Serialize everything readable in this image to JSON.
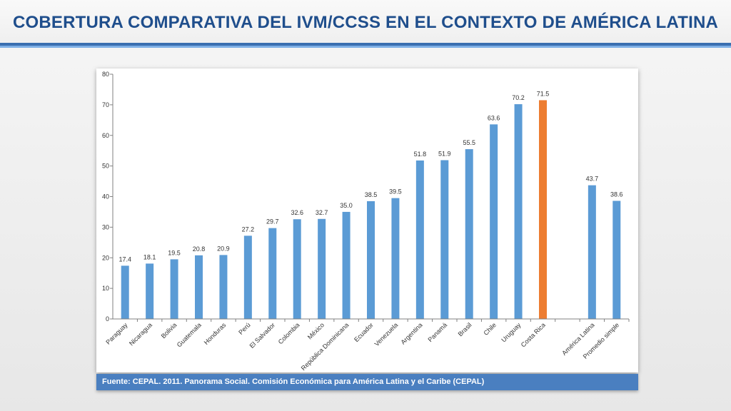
{
  "slide": {
    "title": "COBERTURA COMPARATIVA DEL IVM/CCSS EN EL CONTEXTO DE AMÉRICA LATINA",
    "source": "Fuente: CEPAL. 2011. Panorama Social. Comisión Económica para América Latina y el Caribe (CEPAL)"
  },
  "colors": {
    "title": "#1f4e8c",
    "bar_default": "#5b9bd5",
    "bar_highlight": "#ed7d31",
    "footer_band": "#4a7fc0"
  },
  "chart_data": {
    "type": "bar",
    "title": "",
    "xlabel": "",
    "ylabel": "",
    "ylim": [
      0,
      80
    ],
    "yticks": [
      0,
      10,
      20,
      30,
      40,
      50,
      60,
      70,
      80
    ],
    "grid": false,
    "legend": "none",
    "categories": [
      "Paraguay",
      "Nicaragua",
      "Bolivia",
      "Guatemala",
      "Honduras",
      "Perú",
      "El Salvador",
      "Colombia",
      "México",
      "República Dominicana",
      "Ecuador",
      "Venezuela",
      "Argentina",
      "Panamá",
      "Brasil",
      "Chile",
      "Uruguay",
      "Costa Rica",
      "",
      "América Latina",
      "Promedio simple"
    ],
    "values": [
      17.4,
      18.1,
      19.5,
      20.8,
      20.9,
      27.2,
      29.7,
      32.6,
      32.7,
      35.0,
      38.5,
      39.5,
      51.8,
      51.9,
      55.5,
      63.6,
      70.2,
      71.5,
      null,
      43.7,
      38.6
    ],
    "value_labels": [
      "17.4",
      "18.1",
      "19.5",
      "20.8",
      "20.9",
      "27.2",
      "29.7",
      "32.6",
      "32.7",
      "35.0",
      "38.5",
      "39.5",
      "51.8",
      "51.9",
      "55.5",
      "63.6",
      "70.2",
      "71.5",
      "",
      "43.7",
      "38.6"
    ],
    "highlight_category": "Costa Rica"
  }
}
